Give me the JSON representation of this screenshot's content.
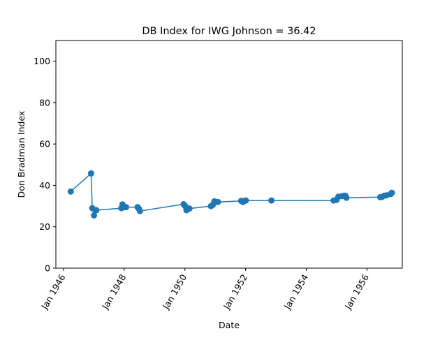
{
  "chart_data": {
    "type": "line",
    "title": "DB Index for IWG Johnson = 36.42",
    "xlabel": "Date",
    "ylabel": "Don Bradman Index",
    "xlim": [
      "1945-10-01",
      "1957-03-01"
    ],
    "ylim": [
      0,
      110
    ],
    "grid": false,
    "x_ticks": [
      {
        "date": "1946-01-01",
        "label": "Jan 1946"
      },
      {
        "date": "1948-01-01",
        "label": "Jan 1948"
      },
      {
        "date": "1950-01-01",
        "label": "Jan 1950"
      },
      {
        "date": "1952-01-01",
        "label": "Jan 1952"
      },
      {
        "date": "1954-01-01",
        "label": "Jan 1954"
      },
      {
        "date": "1956-01-01",
        "label": "Jan 1956"
      }
    ],
    "y_ticks": [
      0,
      20,
      40,
      60,
      80,
      100
    ],
    "color": "#1f77b4",
    "series": [
      {
        "x": [
          "1946-03-29",
          "1946-11-29",
          "1946-12-13",
          "1947-01-03",
          "1947-01-31",
          "1947-11-28",
          "1947-12-12",
          "1948-01-01",
          "1948-01-23",
          "1948-06-10",
          "1948-06-24",
          "1948-07-08",
          "1949-12-16",
          "1950-01-05",
          "1950-01-20",
          "1950-02-10",
          "1950-02-24",
          "1950-11-10",
          "1950-12-01",
          "1950-12-22",
          "1951-01-05",
          "1951-02-02",
          "1951-11-09",
          "1951-11-30",
          "1951-12-21",
          "1952-01-04",
          "1952-11-07",
          "1954-11-26",
          "1954-12-31",
          "1955-01-21",
          "1955-03-04",
          "1955-04-01",
          "1955-04-15",
          "1955-04-29",
          "1956-06-08",
          "1956-06-28",
          "1956-07-26",
          "1956-08-23",
          "1956-10-12",
          "1956-10-26"
        ],
        "values": [
          37.0,
          45.8,
          29.0,
          25.5,
          28.0,
          29.0,
          30.8,
          29.5,
          29.5,
          29.5,
          28.8,
          27.6,
          30.9,
          30.0,
          28.0,
          28.5,
          28.8,
          30.0,
          30.5,
          32.3,
          32.0,
          32.0,
          32.5,
          32.0,
          32.5,
          32.7,
          32.7,
          32.7,
          33.0,
          34.5,
          34.8,
          35.0,
          35.0,
          34.0,
          34.3,
          34.4,
          35.0,
          35.2,
          35.8,
          36.4
        ]
      }
    ]
  }
}
